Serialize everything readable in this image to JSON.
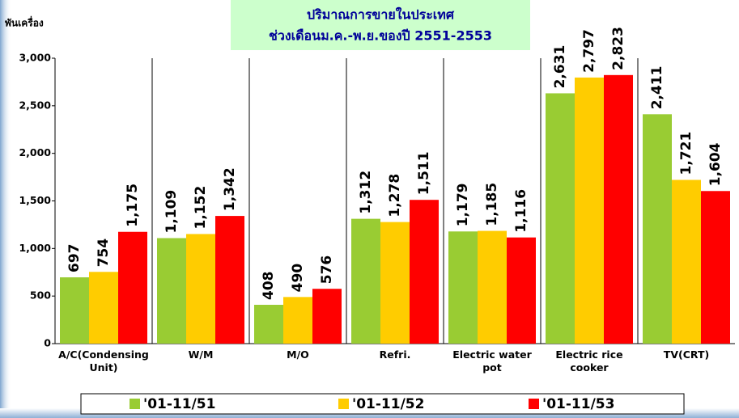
{
  "chart_data": {
    "type": "bar",
    "title": [
      "ปริมาณการขายในประเทศ",
      "ช่วงเดือนม.ค.-พ.ย.ของปี 2551-2553"
    ],
    "y_label": "พันเครื่อง",
    "categories": [
      "A/C(Condensing Unit)",
      "W/M",
      "M/O",
      "Refri.",
      "Electric water pot",
      "Electric rice cooker",
      "TV(CRT)"
    ],
    "series": [
      {
        "name": "'01-11/51",
        "color": "#99cc33",
        "values": [
          697,
          1109,
          408,
          1312,
          1179,
          2631,
          2411
        ],
        "value_labels": [
          "697",
          "1,109",
          "408",
          "1,312",
          "1,179",
          "2,631",
          "2,411"
        ]
      },
      {
        "name": "'01-11/52",
        "color": "#ffcc00",
        "values": [
          754,
          1152,
          490,
          1278,
          1185,
          2797,
          1721
        ],
        "value_labels": [
          "754",
          "1,152",
          "490",
          "1,278",
          "1,185",
          "2,797",
          "1,721"
        ]
      },
      {
        "name": "'01-11/53",
        "color": "#ff0000",
        "values": [
          1175,
          1342,
          576,
          1511,
          1116,
          2823,
          1604
        ],
        "value_labels": [
          "1,175",
          "1,342",
          "576",
          "1,511",
          "1,116",
          "2,823",
          "1,604"
        ]
      }
    ],
    "ylim": [
      0,
      3000
    ],
    "yticks": [
      0,
      500,
      {
        "value": 1000,
        "label": "1,000"
      },
      {
        "value": 1500,
        "label": "1,500"
      },
      {
        "value": 2000,
        "label": "2,000"
      },
      {
        "value": 2500,
        "label": "2,500"
      },
      {
        "value": 3000,
        "label": "3,000"
      }
    ],
    "legend": "bottom"
  }
}
